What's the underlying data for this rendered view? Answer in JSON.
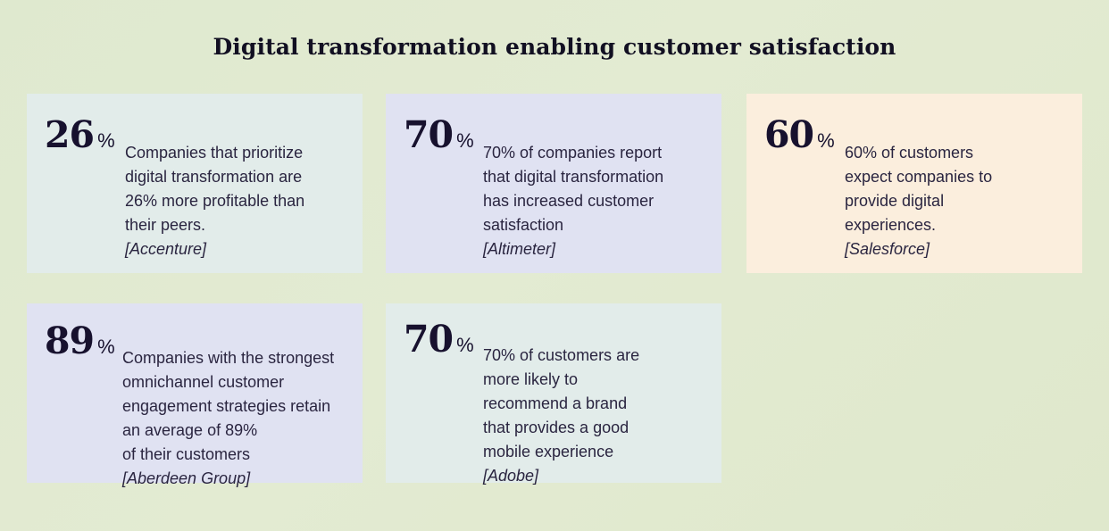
{
  "title": "Digital transformation enabling customer satisfaction",
  "cards": [
    {
      "number": "26",
      "unit": "%",
      "text": "Companies that prioritize\ndigital transformation are\n26% more profitable than\ntheir peers.",
      "source": "[Accenture]",
      "color": "#e2ecea"
    },
    {
      "number": "70",
      "unit": "%",
      "text": "70% of companies report\nthat digital transformation\nhas increased customer\nsatisfaction",
      "source": "[Altimeter]",
      "color": "#e0e2f2"
    },
    {
      "number": "60",
      "unit": "%",
      "text": "60% of customers\nexpect companies to\nprovide digital\nexperiences.",
      "source": "[Salesforce]",
      "color": "#fbeedd"
    },
    {
      "number": "89",
      "unit": "%",
      "text": "Companies with the strongest\nomnichannel customer\nengagement strategies retain\nan average of 89%\nof their customers",
      "source": "[Aberdeen Group]",
      "color": "#e0e2f2"
    },
    {
      "number": "70",
      "unit": "%",
      "text": "70% of customers are\nmore likely to\nrecommend a brand\nthat provides a good\nmobile experience",
      "source": "[Adobe]",
      "color": "#e2ecea"
    }
  ]
}
